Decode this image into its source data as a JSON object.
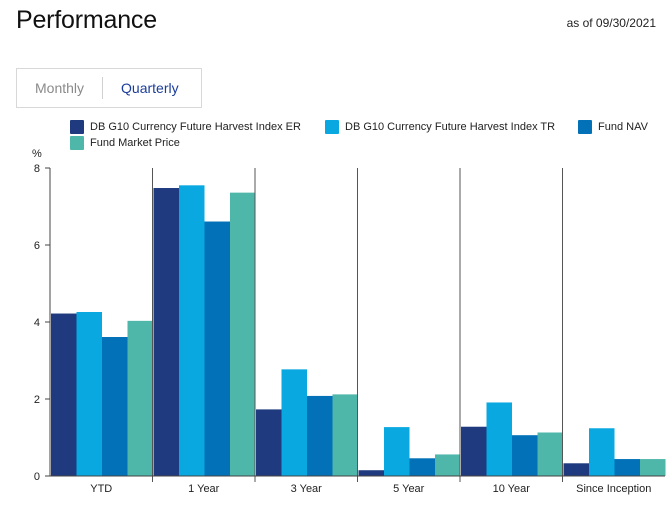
{
  "header": {
    "title": "Performance",
    "as_of": "as of 09/30/2021"
  },
  "tabs": [
    {
      "label": "Monthly",
      "active": false
    },
    {
      "label": "Quarterly",
      "active": true
    }
  ],
  "chart_data": {
    "type": "bar",
    "ylabel": "%",
    "ylim": [
      0,
      8
    ],
    "yticks": [
      0,
      2,
      4,
      6,
      8
    ],
    "categories": [
      "YTD",
      "1 Year",
      "3 Year",
      "5 Year",
      "10 Year",
      "Since Inception"
    ],
    "series": [
      {
        "name": "DB G10 Currency Future Harvest Index ER",
        "color": "#1f3a7e",
        "values": [
          4.22,
          7.48,
          1.73,
          0.15,
          1.28,
          0.33
        ]
      },
      {
        "name": "DB G10 Currency Future Harvest Index TR",
        "color": "#0aa8e0",
        "values": [
          4.26,
          7.55,
          2.77,
          1.27,
          1.91,
          1.24
        ]
      },
      {
        "name": "Fund NAV",
        "color": "#0271b8",
        "values": [
          3.61,
          6.61,
          2.08,
          0.46,
          1.06,
          0.44
        ]
      },
      {
        "name": "Fund Market Price",
        "color": "#4fb6aa",
        "values": [
          4.03,
          7.36,
          2.12,
          0.56,
          1.13,
          0.44
        ]
      }
    ],
    "legend_position": "top",
    "grid": false
  }
}
